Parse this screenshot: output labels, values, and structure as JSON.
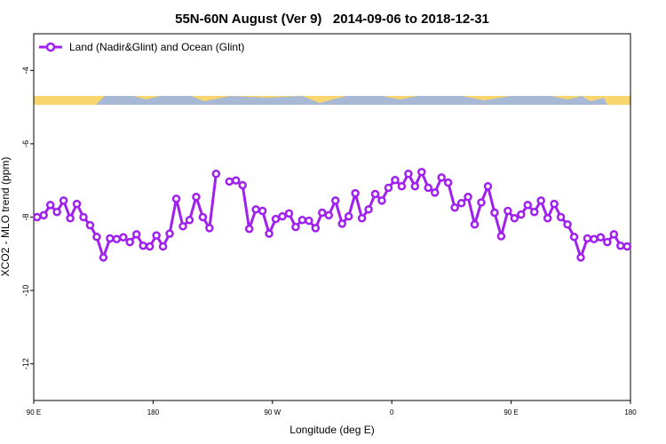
{
  "chart_data": {
    "type": "line",
    "title": "55N-60N August (Ver 9)   2014-09-06 to 2018-12-31",
    "x_label": "Longitude (deg E)",
    "y_label": "XCO2 - MLO trend (ppm)",
    "x": [
      92.5,
      97.5,
      102.5,
      107.5,
      112.5,
      117.5,
      122.5,
      127.5,
      132.5,
      137.5,
      142.5,
      147.5,
      152.5,
      157.5,
      162.5,
      167.5,
      172.5,
      177.5,
      182.5,
      187.5,
      192.5,
      197.5,
      202.5,
      207.5,
      212.5,
      217.5,
      222.5,
      227.5,
      232.5,
      237.5,
      242.5,
      247.5,
      252.5,
      257.5,
      262.5,
      267.5,
      272.5,
      277.5,
      282.5,
      287.5,
      292.5,
      297.5,
      302.5,
      307.5,
      312.5,
      317.5,
      322.5,
      327.5,
      332.5,
      337.5,
      342.5,
      347.5,
      352.5,
      357.5,
      362.5,
      367.5,
      372.5,
      377.5,
      382.5,
      387.5,
      392.5,
      397.5,
      402.5,
      407.5,
      412.5,
      417.5,
      422.5,
      427.5,
      432.5,
      437.5,
      442.5,
      447.5,
      452.5,
      457.5,
      462.5,
      467.5,
      472.5,
      477.5,
      482.5,
      487.5,
      492.5,
      497.5,
      502.5,
      507.5,
      512.5,
      517.5,
      522.5,
      527.5,
      532.5,
      537.5
    ],
    "series": [
      {
        "name": "Land (Nadir&Glint) and Ocean (Glint)",
        "color": "#a020f0",
        "values": [
          -8.0,
          -7.95,
          -7.67,
          -7.86,
          -7.55,
          -8.03,
          -7.64,
          -8.0,
          -8.22,
          -8.54,
          -9.1,
          -8.58,
          -8.6,
          -8.55,
          -8.68,
          -8.47,
          -8.78,
          -8.8,
          -8.5,
          -8.8,
          -8.45,
          -7.5,
          -8.25,
          -8.08,
          -7.45,
          -8.0,
          -8.3,
          -6.82,
          null,
          -7.03,
          -7.0,
          -7.13,
          -8.32,
          -7.79,
          -7.83,
          -8.45,
          -8.05,
          -7.98,
          -7.9,
          -8.27,
          -8.08,
          -8.1,
          -8.3,
          -7.88,
          -7.95,
          -7.55,
          -8.18,
          -7.98,
          -7.35,
          -8.03,
          -7.79,
          -7.37,
          -7.55,
          -7.2,
          -6.99,
          -7.16,
          -6.82,
          -7.16,
          -6.77,
          -7.2,
          -7.33,
          -6.92,
          -7.06,
          -7.74,
          -7.62,
          -7.45,
          -8.2,
          -7.6,
          -7.16,
          -7.88,
          -8.52,
          -7.83,
          -8.03,
          -7.93,
          -7.67,
          -7.86,
          -7.55,
          -8.03,
          -7.64,
          -8.0,
          -8.2,
          -8.54,
          -9.1,
          -8.58,
          -8.6,
          -8.55,
          -8.68,
          -8.47,
          -8.78,
          -8.8
        ]
      }
    ],
    "xlim": [
      90,
      540
    ],
    "xticks": [
      {
        "value": 90,
        "label": "90 E"
      },
      {
        "value": 180,
        "label": "180"
      },
      {
        "value": 270,
        "label": "90 W"
      },
      {
        "value": 360,
        "label": "0"
      },
      {
        "value": 450,
        "label": "90 E"
      },
      {
        "value": 540,
        "label": "180"
      }
    ],
    "ylim": [
      -13,
      -3
    ],
    "yticks": [
      -12,
      -10,
      -8,
      -6,
      -4
    ],
    "legend": "top-left"
  }
}
